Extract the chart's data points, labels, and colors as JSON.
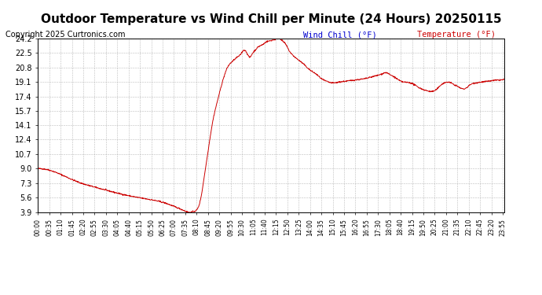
{
  "title": "Outdoor Temperature vs Wind Chill per Minute (24 Hours) 20250115",
  "copyright": "Copyright 2025 Curtronics.com",
  "legend_wind_chill": "Wind Chill (°F)",
  "legend_temperature": "Temperature (°F)",
  "legend_wind_chill_color": "#0000cd",
  "legend_temperature_color": "#cc0000",
  "line_color": "#cc0000",
  "background_color": "#ffffff",
  "plot_bg_color": "#ffffff",
  "grid_color": "#aaaaaa",
  "title_fontsize": 11,
  "copyright_fontsize": 7,
  "legend_fontsize": 7.5,
  "ytick_labels": [
    "3.9",
    "5.6",
    "7.3",
    "9.0",
    "10.7",
    "12.4",
    "14.1",
    "15.7",
    "17.4",
    "19.1",
    "20.8",
    "22.5",
    "24.2"
  ],
  "ytick_values": [
    3.9,
    5.6,
    7.3,
    9.0,
    10.7,
    12.4,
    14.1,
    15.7,
    17.4,
    19.1,
    20.8,
    22.5,
    24.2
  ],
  "ymin": 3.9,
  "ymax": 24.2,
  "xtick_step": 35,
  "total_minutes": 1440
}
